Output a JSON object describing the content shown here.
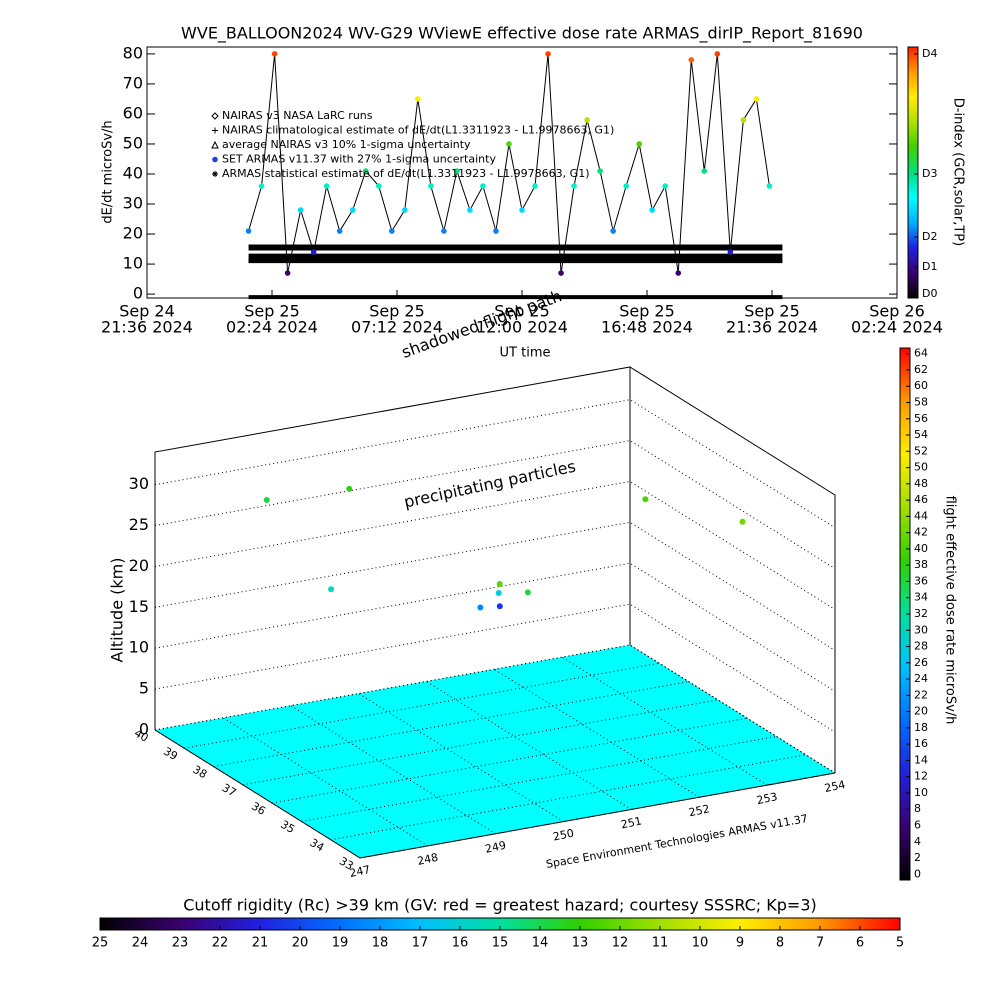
{
  "chart_data": [
    {
      "type": "line",
      "title": "WVE_BALLOON2024 WV-G29 WViewE effective dose rate ARMAS_dirIP_Report_81690",
      "ylabel": "dE/dt microSv/h",
      "xlabel": "UT time",
      "annotation": "shadowed flight path",
      "xlim": [
        "2024-09-24 21:36",
        "2024-09-26 02:24"
      ],
      "xticks": [
        {
          "value": "2024-09-24 21:36",
          "label": [
            "Sep 24",
            "21:36 2024"
          ]
        },
        {
          "value": "2024-09-25 02:24",
          "label": [
            "Sep 25",
            "02:24 2024"
          ]
        },
        {
          "value": "2024-09-25 07:12",
          "label": [
            "Sep 25",
            "07:12 2024"
          ]
        },
        {
          "value": "2024-09-25 12:00",
          "label": [
            "Sep 25",
            "12:00 2024"
          ]
        },
        {
          "value": "2024-09-25 16:48",
          "label": [
            "Sep 25",
            "16:48 2024"
          ]
        },
        {
          "value": "2024-09-25 21:36",
          "label": [
            "Sep 25",
            "21:36 2024"
          ]
        },
        {
          "value": "2024-09-26 02:24",
          "label": [
            "Sep 26",
            "02:24 2024"
          ]
        }
      ],
      "ylim": [
        -1.3,
        82.3
      ],
      "yticks": [
        0,
        10,
        20,
        30,
        40,
        50,
        60,
        70,
        80
      ],
      "series": [
        {
          "name": "NAIRAS v3 NASA LaRC runs",
          "marker": "diamond",
          "color": "#000000",
          "width": 4,
          "x": [
            "2024-09-25 01:30",
            "2024-09-25 22:00"
          ],
          "values": [
            -1,
            -1
          ]
        },
        {
          "name": "NAIRAS climatological estimate of dE/dt(L1.3311923 - L1.9978663, G1)",
          "marker": "plus",
          "color": "#000000",
          "width": 6,
          "x": [
            "2024-09-25 01:30",
            "2024-09-25 22:00"
          ],
          "values": [
            15.5,
            15.5
          ]
        },
        {
          "name": "average NAIRAS v3 10% 1-sigma uncertainty",
          "marker": "triangle",
          "color": "#000000",
          "width": 9,
          "x": [
            "2024-09-25 01:30",
            "2024-09-25 22:00"
          ],
          "values": [
            12,
            12
          ]
        },
        {
          "name": "SET ARMAS v11.37 with 27% 1-sigma uncertainty",
          "marker": "dot",
          "color": "#000000",
          "x": [
            "2024-09-25 01:30",
            "2024-09-25 02:00",
            "2024-09-25 02:30",
            "2024-09-25 03:00",
            "2024-09-25 03:30",
            "2024-09-25 04:00",
            "2024-09-25 04:30",
            "2024-09-25 05:00",
            "2024-09-25 05:30",
            "2024-09-25 06:00",
            "2024-09-25 06:30",
            "2024-09-25 07:00",
            "2024-09-25 07:30",
            "2024-09-25 08:00",
            "2024-09-25 08:30",
            "2024-09-25 09:00",
            "2024-09-25 09:30",
            "2024-09-25 10:00",
            "2024-09-25 10:30",
            "2024-09-25 11:00",
            "2024-09-25 11:30",
            "2024-09-25 12:00",
            "2024-09-25 12:30",
            "2024-09-25 13:00",
            "2024-09-25 13:30",
            "2024-09-25 14:00",
            "2024-09-25 14:30",
            "2024-09-25 15:00",
            "2024-09-25 15:30",
            "2024-09-25 16:00",
            "2024-09-25 16:30",
            "2024-09-25 17:00",
            "2024-09-25 17:30",
            "2024-09-25 18:00",
            "2024-09-25 18:30",
            "2024-09-25 19:00",
            "2024-09-25 19:30",
            "2024-09-25 20:00",
            "2024-09-25 20:30",
            "2024-09-25 21:00",
            "2024-09-25 21:30"
          ],
          "values": [
            21,
            36,
            80,
            7,
            28,
            14,
            36,
            21,
            28,
            41,
            36,
            21,
            28,
            65,
            36,
            21,
            41,
            28,
            36,
            21,
            50,
            28,
            36,
            80,
            7,
            36,
            58,
            41,
            21,
            36,
            50,
            28,
            36,
            7,
            78,
            41,
            80,
            14,
            58,
            65,
            36
          ]
        },
        {
          "name": "ARMAS statistical estimate of dE/dt(L1.3311923 - L1.9978663, G1)",
          "marker": "asterisk",
          "color": "#000000",
          "width": 4,
          "x": [
            "2024-09-25 01:30",
            "2024-09-25 22:00"
          ],
          "values": [
            11,
            11
          ]
        }
      ],
      "colorbar": {
        "label": "D-index (GCR,solar,TP)",
        "lim": [
          -1.3,
          82.3
        ],
        "ticks": [
          {
            "value": 0,
            "label": "D0"
          },
          {
            "value": 9,
            "label": "D1"
          },
          {
            "value": 19,
            "label": "D2"
          },
          {
            "value": 40,
            "label": "D3"
          },
          {
            "value": 80,
            "label": "D4"
          }
        ],
        "colors": [
          "#000000",
          "#3a0070",
          "#2020e0",
          "#00b0ff",
          "#00ffff",
          "#00e080",
          "#40d000",
          "#b0e000",
          "#ffee00",
          "#ff9900",
          "#ff2000"
        ]
      }
    },
    {
      "type": "scatter3d",
      "zlabel": "Altitude (km)",
      "annotation": "precipitating particles",
      "credit": "Space Environment Technologies ARMAS v11.37",
      "xlim": [
        247,
        254
      ],
      "xticks": [
        247,
        248,
        249,
        250,
        251,
        252,
        253,
        254
      ],
      "ylim": [
        33,
        40
      ],
      "yticks": [
        33,
        34,
        35,
        36,
        37,
        38,
        39,
        40
      ],
      "zlim": [
        0,
        34
      ],
      "zticks": [
        0,
        5,
        10,
        15,
        20,
        25,
        30
      ],
      "x": [
        250.5,
        250.9,
        251.2,
        250.7,
        251.0,
        248.0,
        249.0,
        252.5,
        253.5,
        248.3
      ],
      "y": [
        37.0,
        37.3,
        37.0,
        36.8,
        37.5,
        38.5,
        38.0,
        36.0,
        35.0,
        37.0
      ],
      "z": [
        16.5,
        17.0,
        17.3,
        16.8,
        17.5,
        30,
        31,
        29,
        27,
        22
      ],
      "values": [
        21,
        28,
        36,
        14,
        41,
        36,
        38,
        40,
        42,
        30
      ],
      "colorbar": {
        "label": "flight effective dose rate microSv/h",
        "lim": [
          -0.7,
          64.7
        ],
        "ticks": [
          0,
          2,
          4,
          6,
          8,
          10,
          12,
          14,
          16,
          18,
          20,
          22,
          24,
          26,
          28,
          30,
          32,
          34,
          36,
          38,
          40,
          42,
          44,
          46,
          48,
          50,
          52,
          54,
          56,
          58,
          60,
          62,
          64
        ],
        "colors": [
          "#000000",
          "#3a0070",
          "#2020e0",
          "#0070ff",
          "#00c0ff",
          "#00e0a0",
          "#30d000",
          "#a0e000",
          "#ffee00",
          "#ff9900",
          "#ff0000"
        ]
      },
      "rc_colorbar": {
        "label": "Cutoff rigidity (Rc) >39 km (GV: red = greatest hazard; courtesy SSSRC; Kp=3)",
        "lim": [
          25,
          5
        ],
        "ticks": [
          25,
          24,
          23,
          22,
          21,
          20,
          19,
          18,
          17,
          16,
          15,
          14,
          13,
          12,
          11,
          10,
          9,
          8,
          7,
          6,
          5
        ],
        "colors": [
          "#000000",
          "#3a0070",
          "#2020e0",
          "#0070ff",
          "#00c0ff",
          "#00e0a0",
          "#30d000",
          "#a0e000",
          "#ffee00",
          "#ff9900",
          "#ff0000"
        ]
      }
    }
  ]
}
